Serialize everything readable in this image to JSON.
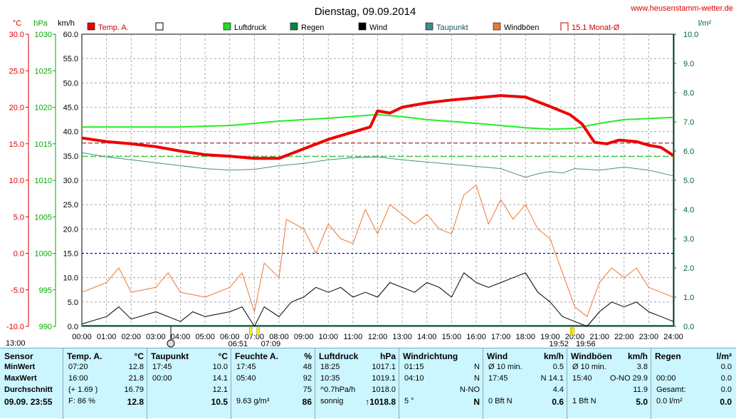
{
  "title": "Dienstag, 09.09.2014",
  "site": "www.heusenstamm-wetter.de",
  "chart_data": {
    "type": "line",
    "x_start": "13:00",
    "x_ticks": [
      "00:00",
      "01:00",
      "02:00",
      "03:00",
      "04:00",
      "05:00",
      "06:00",
      "07:00",
      "08:00",
      "09:00",
      "10:00",
      "11:00",
      "12:00",
      "13:00",
      "14:00",
      "15:00",
      "16:00",
      "17:00",
      "18:00",
      "19:00",
      "20:00",
      "21:00",
      "22:00",
      "23:00",
      "24:00"
    ],
    "xlim_hours": [
      0,
      24
    ],
    "axes": {
      "temp": {
        "unit": "°C",
        "min": -10,
        "max": 30,
        "ticks": [
          "30.0",
          "25.0",
          "20.0",
          "15.0",
          "10.0",
          "5.0",
          "0.0",
          "-5.0",
          "-10.0"
        ],
        "color": "#e00000"
      },
      "pressure": {
        "unit": "hPa",
        "min": 990,
        "max": 1030,
        "ticks": [
          "1030",
          "1025",
          "1020",
          "1015",
          "1010",
          "1005",
          "1000",
          "995",
          "990"
        ],
        "color": "#00aa00"
      },
      "wind": {
        "unit": "km/h",
        "min": 0,
        "max": 60,
        "ticks": [
          "60.0",
          "55.0",
          "50.0",
          "45.0",
          "40.0",
          "35.0",
          "30.0",
          "25.0",
          "20.0",
          "15.0",
          "10.0",
          "5.0",
          "0.0"
        ],
        "color": "#000000"
      },
      "rain": {
        "unit": "l/m²",
        "min": 0,
        "max": 10,
        "ticks": [
          "10.0",
          "9.0",
          "8.0",
          "7.0",
          "6.0",
          "5.0",
          "4.0",
          "3.0",
          "2.0",
          "1.0",
          "0.0"
        ],
        "color": "#006633"
      }
    },
    "legend": [
      {
        "name": "Temp. A.",
        "color": "#ee0000",
        "style": "fill"
      },
      {
        "name": "",
        "color": "#ffffff",
        "style": "box"
      },
      {
        "name": "Luftdruck",
        "color": "#22dd22",
        "style": "fill"
      },
      {
        "name": "Regen",
        "color": "#008844",
        "style": "fill"
      },
      {
        "name": "Wind",
        "color": "#000000",
        "style": "fill"
      },
      {
        "name": "Taupunkt",
        "color": "#44888a",
        "style": "fill"
      },
      {
        "name": "Windböen",
        "color": "#ee7733",
        "style": "fill"
      },
      {
        "name": "15.1 Monat-Ø",
        "color": "#cc3333",
        "style": "open"
      }
    ],
    "reference_lines": [
      {
        "axis": "temp",
        "value": 15.1,
        "color": "#993333",
        "dash": "6,3"
      },
      {
        "axis": "pressure",
        "value": 1013.25,
        "color": "#22cc22",
        "dash": "8,4"
      },
      {
        "axis": "temp",
        "value": 0,
        "color": "#0000cc",
        "dash": "3,3"
      }
    ],
    "series": [
      {
        "name": "Temp. A.",
        "axis": "temp",
        "color": "#ee0000",
        "width": 4,
        "points": [
          [
            0,
            15.8
          ],
          [
            1,
            15.3
          ],
          [
            2,
            15.0
          ],
          [
            3,
            14.6
          ],
          [
            4,
            14.0
          ],
          [
            5,
            13.5
          ],
          [
            6,
            13.3
          ],
          [
            7,
            13.0
          ],
          [
            8,
            13.0
          ],
          [
            9,
            14.3
          ],
          [
            10,
            15.6
          ],
          [
            11,
            16.6
          ],
          [
            11.7,
            17.3
          ],
          [
            12,
            19.5
          ],
          [
            12.5,
            19.2
          ],
          [
            13,
            20.0
          ],
          [
            13.5,
            20.3
          ],
          [
            14,
            20.6
          ],
          [
            14.5,
            20.8
          ],
          [
            15,
            21.0
          ],
          [
            16,
            21.3
          ],
          [
            17,
            21.6
          ],
          [
            18,
            21.4
          ],
          [
            19,
            20.1
          ],
          [
            19.8,
            19.0
          ],
          [
            20.3,
            17.7
          ],
          [
            20.8,
            15.2
          ],
          [
            21.3,
            15.0
          ],
          [
            21.8,
            15.5
          ],
          [
            22.5,
            15.3
          ],
          [
            23,
            14.8
          ],
          [
            23.5,
            14.5
          ],
          [
            24,
            13.4
          ]
        ]
      },
      {
        "name": "Luftdruck",
        "axis": "pressure",
        "color": "#22ee22",
        "width": 2,
        "points": [
          [
            0,
            1017.3
          ],
          [
            2,
            1017.3
          ],
          [
            4,
            1017.3
          ],
          [
            6,
            1017.5
          ],
          [
            8,
            1018.1
          ],
          [
            10,
            1018.5
          ],
          [
            12,
            1019.0
          ],
          [
            13,
            1018.7
          ],
          [
            14,
            1018.3
          ],
          [
            16,
            1017.8
          ],
          [
            18,
            1017.2
          ],
          [
            19,
            1017.0
          ],
          [
            20,
            1017.1
          ],
          [
            21,
            1017.8
          ],
          [
            22,
            1018.3
          ],
          [
            24,
            1018.6
          ]
        ]
      },
      {
        "name": "Taupunkt",
        "axis": "temp",
        "color": "#4a8a8c",
        "width": 1,
        "points": [
          [
            0,
            13.8
          ],
          [
            1,
            13.2
          ],
          [
            2,
            12.8
          ],
          [
            3,
            12.4
          ],
          [
            4,
            12.0
          ],
          [
            5,
            11.6
          ],
          [
            6,
            11.4
          ],
          [
            7,
            11.5
          ],
          [
            8,
            12.0
          ],
          [
            9,
            12.3
          ],
          [
            10,
            12.8
          ],
          [
            11,
            13.1
          ],
          [
            12,
            13.2
          ],
          [
            13,
            12.8
          ],
          [
            14,
            12.5
          ],
          [
            15,
            12.2
          ],
          [
            16,
            11.9
          ],
          [
            17,
            11.6
          ],
          [
            17.5,
            11.0
          ],
          [
            18,
            10.4
          ],
          [
            18.5,
            10.9
          ],
          [
            19,
            11.2
          ],
          [
            19.5,
            11.0
          ],
          [
            20,
            11.6
          ],
          [
            21,
            11.4
          ],
          [
            22,
            11.8
          ],
          [
            23,
            11.4
          ],
          [
            24,
            10.6
          ]
        ]
      },
      {
        "name": "Windböen",
        "axis": "wind",
        "color": "#ee7733",
        "width": 1,
        "points": [
          [
            0,
            7
          ],
          [
            1,
            9
          ],
          [
            1.5,
            12
          ],
          [
            2,
            7
          ],
          [
            3,
            8
          ],
          [
            3.5,
            11
          ],
          [
            4,
            7
          ],
          [
            5,
            6
          ],
          [
            6,
            8
          ],
          [
            6.5,
            11
          ],
          [
            7,
            3
          ],
          [
            7.4,
            13
          ],
          [
            8,
            10
          ],
          [
            8.3,
            22
          ],
          [
            9,
            20
          ],
          [
            9.5,
            15
          ],
          [
            10,
            21
          ],
          [
            10.5,
            18
          ],
          [
            11,
            17
          ],
          [
            11.5,
            24
          ],
          [
            12,
            19
          ],
          [
            12.5,
            25
          ],
          [
            13,
            23
          ],
          [
            13.5,
            21
          ],
          [
            14,
            23
          ],
          [
            14.5,
            20
          ],
          [
            15,
            19
          ],
          [
            15.5,
            27
          ],
          [
            16,
            29
          ],
          [
            16.5,
            21
          ],
          [
            17,
            26
          ],
          [
            17.5,
            22
          ],
          [
            18,
            25
          ],
          [
            18.5,
            20
          ],
          [
            19,
            18
          ],
          [
            19.5,
            11
          ],
          [
            20,
            4
          ],
          [
            20.5,
            2
          ],
          [
            21,
            9
          ],
          [
            21.5,
            12
          ],
          [
            22,
            10
          ],
          [
            22.5,
            12
          ],
          [
            23,
            8
          ],
          [
            23.5,
            7
          ],
          [
            24,
            6
          ]
        ]
      },
      {
        "name": "Wind",
        "axis": "wind",
        "color": "#000000",
        "width": 1,
        "points": [
          [
            0,
            0.5
          ],
          [
            1,
            2
          ],
          [
            1.5,
            4
          ],
          [
            2,
            1.5
          ],
          [
            3,
            3
          ],
          [
            3.5,
            2
          ],
          [
            4,
            1
          ],
          [
            4.5,
            3
          ],
          [
            5,
            2
          ],
          [
            6,
            3
          ],
          [
            6.5,
            4
          ],
          [
            7,
            0
          ],
          [
            7.4,
            4
          ],
          [
            8,
            2
          ],
          [
            8.5,
            5
          ],
          [
            9,
            6
          ],
          [
            9.5,
            8
          ],
          [
            10,
            7
          ],
          [
            10.5,
            8
          ],
          [
            11,
            6
          ],
          [
            11.5,
            7
          ],
          [
            12,
            6
          ],
          [
            12.5,
            9
          ],
          [
            13,
            8
          ],
          [
            13.5,
            7
          ],
          [
            14,
            9
          ],
          [
            14.5,
            8
          ],
          [
            15,
            6
          ],
          [
            15.5,
            11
          ],
          [
            16,
            9
          ],
          [
            16.5,
            8
          ],
          [
            17,
            9
          ],
          [
            17.5,
            10
          ],
          [
            18,
            11
          ],
          [
            18.5,
            7
          ],
          [
            19,
            5
          ],
          [
            19.5,
            2
          ],
          [
            20,
            1
          ],
          [
            20.5,
            0
          ],
          [
            21,
            3
          ],
          [
            21.5,
            5
          ],
          [
            22,
            4
          ],
          [
            22.5,
            5
          ],
          [
            23,
            3
          ],
          [
            23.5,
            2
          ],
          [
            24,
            1
          ]
        ]
      }
    ],
    "markers": [
      {
        "label": "06:51",
        "hour": 6.85
      },
      {
        "label": "07:09",
        "hour": 7.15
      },
      {
        "label": "19:52",
        "hour": 19.87
      },
      {
        "label": "19:56",
        "hour": 19.93
      }
    ]
  },
  "stats": {
    "sensor": {
      "header": "Sensor",
      "rows": [
        "MinWert",
        "MaxWert",
        "Durchschnitt"
      ],
      "footer": "09.09. 23:55"
    },
    "temp": {
      "header": "Temp. A.",
      "unit": "°C",
      "rows": [
        [
          "07:20",
          "12.8"
        ],
        [
          "16:00",
          "21.8"
        ],
        [
          "(+ 1.69 )",
          "16.79"
        ]
      ],
      "footer": [
        "F: 86 %",
        "12.8"
      ]
    },
    "taupunkt": {
      "header": "Taupunkt",
      "unit": "°C",
      "rows": [
        [
          "17:45",
          "10.0"
        ],
        [
          "00:00",
          "14.1"
        ],
        [
          "",
          "12.1"
        ]
      ],
      "footer": [
        "",
        "10.5"
      ]
    },
    "feuchte": {
      "header": "Feuchte A.",
      "unit": "%",
      "rows": [
        [
          "17:45",
          "48"
        ],
        [
          "05:40",
          "92"
        ],
        [
          "",
          "75"
        ]
      ],
      "footer": [
        "9.63 g/m³",
        "86"
      ]
    },
    "luftdruck": {
      "header": "Luftdruck",
      "unit": "hPa",
      "rows": [
        [
          "18:25",
          "1017.1"
        ],
        [
          "10:35",
          "1019.1"
        ],
        [
          "^0.7hPa/h",
          "1018.0"
        ]
      ],
      "footer": [
        "sonnig",
        "↑1018.8"
      ]
    },
    "windrichtung": {
      "header": "Windrichtung",
      "unit": "",
      "rows": [
        [
          "01:15",
          "N"
        ],
        [
          "04:10",
          "N"
        ],
        [
          "",
          "N-NO"
        ]
      ],
      "footer": [
        "5 °",
        "N"
      ]
    },
    "wind": {
      "header": "Wind",
      "unit": "km/h",
      "rows": [
        [
          "Ø 10 min.",
          "0.5"
        ],
        [
          "17:45",
          "N 14.1"
        ],
        [
          "",
          "4.4"
        ]
      ],
      "footer": [
        "0 Bft N",
        "0.6"
      ]
    },
    "windboeen": {
      "header": "Windböen",
      "unit": "km/h",
      "rows": [
        [
          "Ø 10 min.",
          "3.8"
        ],
        [
          "15:40",
          "O-NO 29.9"
        ],
        [
          "",
          "11.9"
        ]
      ],
      "footer": [
        "1 Bft N",
        "5.0"
      ]
    },
    "regen": {
      "header": "Regen",
      "unit": "l/m²",
      "rows": [
        [
          "",
          "0.0"
        ],
        [
          "00:00",
          "0.0"
        ],
        [
          "Gesamt:",
          "0.0"
        ]
      ],
      "footer": [
        "0.0 l/m²",
        "0.0"
      ]
    }
  }
}
